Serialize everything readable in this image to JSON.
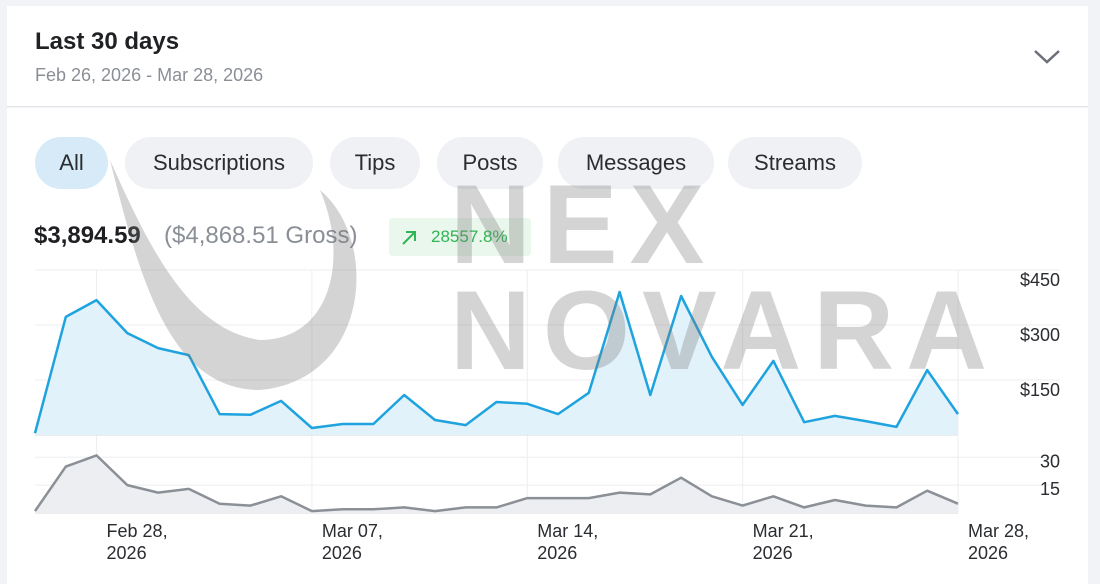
{
  "header": {
    "title": "Last 30 days",
    "range": "Feb 26, 2026 - Mar 28, 2026"
  },
  "filters": [
    "All",
    "Subscriptions",
    "Tips",
    "Posts",
    "Messages",
    "Streams"
  ],
  "summary": {
    "net": "$3,894.59",
    "gross": "($4,868.51 Gross)",
    "change": "28557.8%"
  },
  "watermark": [
    "NEX",
    "NOVARA"
  ],
  "chart_data": [
    {
      "type": "area",
      "categories": [
        null,
        null,
        "Feb 28, 2026",
        null,
        null,
        null,
        null,
        null,
        null,
        "Mar 07, 2026",
        null,
        null,
        null,
        null,
        null,
        null,
        "Mar 14, 2026",
        null,
        null,
        null,
        null,
        null,
        null,
        "Mar 21, 2026",
        null,
        null,
        null,
        null,
        null,
        null,
        "Mar 28, 2026"
      ],
      "values": [
        5,
        322,
        368,
        278,
        237,
        218,
        57,
        55,
        93,
        19,
        30,
        30,
        109,
        41,
        27,
        90,
        85,
        57,
        115,
        390,
        109,
        379,
        213,
        82,
        202,
        35,
        52,
        38,
        22,
        177,
        57
      ],
      "color": "#1fa3de",
      "fill": "#e2f2fb",
      "ylim": [
        0,
        450
      ],
      "yticks": [
        {
          "value": 150,
          "label": "$150"
        },
        {
          "value": 300,
          "label": "$300"
        },
        {
          "value": 450,
          "label": "$450"
        }
      ],
      "grid": true
    },
    {
      "type": "area",
      "values": [
        1,
        25,
        31,
        15,
        11,
        13,
        5,
        4,
        9,
        1,
        2,
        2,
        3,
        1,
        3,
        3,
        8,
        8,
        8,
        11,
        10,
        19,
        9,
        4,
        9,
        3,
        7,
        4,
        3,
        12,
        5
      ],
      "color": "#8b9097",
      "fill": "#eceef1",
      "ylim": [
        0,
        35
      ],
      "yticks": [
        15,
        30
      ],
      "grid": true
    }
  ]
}
